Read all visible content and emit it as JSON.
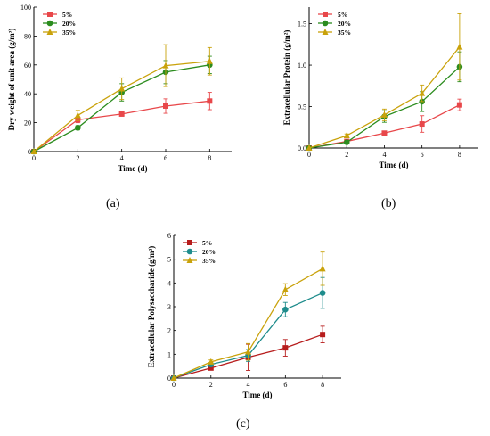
{
  "figure": {
    "panel_labels": [
      "(a)",
      "(b)",
      "(c)"
    ]
  },
  "chart_data": [
    {
      "type": "line",
      "panel": "(a)",
      "title": "",
      "xlabel": "Time (d)",
      "ylabel": "Dry weight of unit area (g/m²)",
      "xlim": [
        0,
        9
      ],
      "ylim": [
        0,
        100
      ],
      "xticks": [
        0,
        2,
        4,
        6,
        8
      ],
      "yticks": [
        0,
        20,
        40,
        60,
        80,
        100
      ],
      "legend_position": "top-left",
      "grid": false,
      "x": [
        0,
        2,
        4,
        6,
        8
      ],
      "series": [
        {
          "name": "5%",
          "color": "#e8474a",
          "marker": "square",
          "values": [
            0,
            22,
            26,
            31.5,
            35
          ],
          "errors": [
            0,
            2,
            1.5,
            5,
            6
          ]
        },
        {
          "name": "20%",
          "color": "#2b8c1e",
          "marker": "circle",
          "values": [
            0,
            16.5,
            41,
            55,
            60
          ],
          "errors": [
            0,
            1.5,
            6,
            8,
            6
          ]
        },
        {
          "name": "35%",
          "color": "#c9a20b",
          "marker": "triangle",
          "values": [
            0,
            25,
            43.5,
            59.5,
            62.5
          ],
          "errors": [
            0,
            3.5,
            7.5,
            14.5,
            9.5
          ]
        }
      ]
    },
    {
      "type": "line",
      "panel": "(b)",
      "title": "",
      "xlabel": "Time (d)",
      "ylabel": "Extracellular Protein (g/m²)",
      "xlim": [
        0,
        9
      ],
      "ylim": [
        0,
        1.7
      ],
      "xticks": [
        0,
        2,
        4,
        6,
        8
      ],
      "yticks": [
        0.0,
        0.5,
        1.0,
        1.5
      ],
      "ytick_labels": [
        "0.0",
        "0.5",
        "1.0",
        "1.5"
      ],
      "legend_position": "top-left",
      "grid": false,
      "x": [
        0,
        2,
        4,
        6,
        8
      ],
      "series": [
        {
          "name": "5%",
          "color": "#e8474a",
          "marker": "square",
          "values": [
            0,
            0.08,
            0.18,
            0.29,
            0.52
          ],
          "errors": [
            0,
            0.01,
            0.02,
            0.1,
            0.07
          ]
        },
        {
          "name": "20%",
          "color": "#2b8c1e",
          "marker": "circle",
          "values": [
            0,
            0.07,
            0.38,
            0.56,
            0.98
          ],
          "errors": [
            0,
            0.02,
            0.07,
            0.12,
            0.18
          ]
        },
        {
          "name": "35%",
          "color": "#c9a20b",
          "marker": "triangle",
          "values": [
            0,
            0.15,
            0.4,
            0.66,
            1.22
          ],
          "errors": [
            0,
            0.02,
            0.07,
            0.1,
            0.4
          ]
        }
      ]
    },
    {
      "type": "line",
      "panel": "(c)",
      "title": "",
      "xlabel": "Time (d)",
      "ylabel": "Extracellular Polysaccharide (g/m²)",
      "xlim": [
        0,
        9
      ],
      "ylim": [
        0,
        6
      ],
      "xticks": [
        0,
        2,
        4,
        6,
        8
      ],
      "yticks": [
        0,
        1,
        2,
        3,
        4,
        5,
        6
      ],
      "legend_position": "top-left",
      "grid": false,
      "x": [
        0,
        2,
        4,
        6,
        8
      ],
      "series": [
        {
          "name": "5%",
          "color": "#b71c1c",
          "marker": "square",
          "values": [
            0,
            0.42,
            0.87,
            1.27,
            1.83
          ],
          "errors": [
            0,
            0.06,
            0.55,
            0.35,
            0.35
          ]
        },
        {
          "name": "20%",
          "color": "#1e8c8c",
          "marker": "circle",
          "values": [
            0,
            0.57,
            0.95,
            2.88,
            3.58
          ],
          "errors": [
            0,
            0.08,
            0.25,
            0.3,
            0.65
          ]
        },
        {
          "name": "35%",
          "color": "#c9a20b",
          "marker": "triangle",
          "values": [
            0,
            0.68,
            1.1,
            3.72,
            4.6
          ],
          "errors": [
            0,
            0.08,
            0.35,
            0.25,
            0.7
          ]
        }
      ]
    }
  ]
}
